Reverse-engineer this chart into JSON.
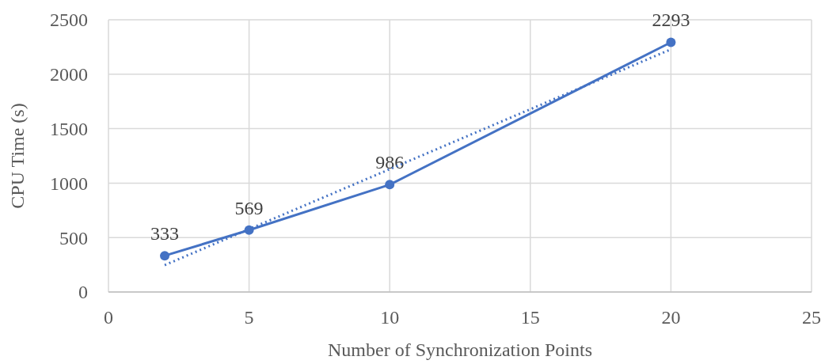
{
  "chart_data": {
    "type": "line",
    "xlabel": "Number of Synchronization Points",
    "ylabel": "CPU Time (s)",
    "xlim": [
      0,
      25
    ],
    "xticks": [
      0,
      5,
      10,
      15,
      20,
      25
    ],
    "ylim": [
      0,
      2500
    ],
    "yticks": [
      0,
      500,
      1000,
      1500,
      2000,
      2500
    ],
    "grid": true,
    "series": [
      {
        "color": "#4472c4",
        "x": [
          2,
          5,
          10,
          20
        ],
        "values": [
          333,
          569,
          986,
          2293
        ],
        "value_labels": [
          "333",
          "569",
          "986",
          "2293"
        ],
        "marker": "circle",
        "line_style": "solid"
      },
      {
        "type": "line",
        "color": "#4472c4",
        "x": [
          2,
          20
        ],
        "values": [
          247,
          2229
        ],
        "marker": "none",
        "line_style": "dotted"
      }
    ]
  }
}
